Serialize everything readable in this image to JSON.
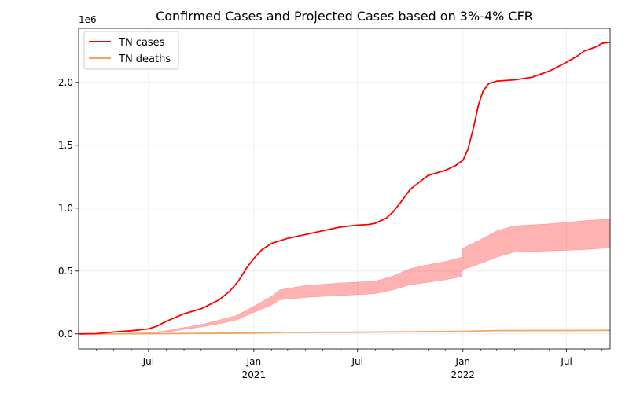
{
  "chart_data": {
    "type": "line",
    "title": "Confirmed Cases and Projected Cases based on 3%-4% CFR",
    "xlabel": "",
    "ylabel": "",
    "y_offset_label": "1e6",
    "y_scale_factor": 1000000,
    "xlim": [
      "2020-03-01",
      "2022-09-15"
    ],
    "ylim": [
      -0.12,
      2.43
    ],
    "yticks": [
      {
        "value": 0.0,
        "label": "0.0"
      },
      {
        "value": 0.5,
        "label": "0.5"
      },
      {
        "value": 1.0,
        "label": "1.0"
      },
      {
        "value": 1.5,
        "label": "1.5"
      },
      {
        "value": 2.0,
        "label": "2.0"
      }
    ],
    "xticks": [
      {
        "date": "2020-07-01",
        "label": "Jul",
        "sublabel": ""
      },
      {
        "date": "2021-01-01",
        "label": "Jan",
        "sublabel": "2021"
      },
      {
        "date": "2021-07-01",
        "label": "Jul",
        "sublabel": ""
      },
      {
        "date": "2022-01-01",
        "label": "Jan",
        "sublabel": "2022"
      },
      {
        "date": "2022-07-01",
        "label": "Jul",
        "sublabel": ""
      }
    ],
    "minor_tick_dates": [
      "2020-04-01",
      "2020-05-01",
      "2020-06-01",
      "2020-08-01",
      "2020-09-01",
      "2020-10-01",
      "2020-11-01",
      "2020-12-01",
      "2021-02-01",
      "2021-03-01",
      "2021-04-01",
      "2021-05-01",
      "2021-06-01",
      "2021-08-01",
      "2021-09-01",
      "2021-10-01",
      "2021-11-01",
      "2021-12-01",
      "2022-02-01",
      "2022-03-01",
      "2022-04-01",
      "2022-05-01",
      "2022-06-01",
      "2022-08-01",
      "2022-09-01"
    ],
    "grid": true,
    "legend_position": "top-left",
    "series": [
      {
        "name": "TN cases",
        "color": "#ff0000",
        "x": [
          "2020-03-01",
          "2020-04-01",
          "2020-05-01",
          "2020-06-01",
          "2020-07-01",
          "2020-07-15",
          "2020-08-01",
          "2020-09-01",
          "2020-10-01",
          "2020-11-01",
          "2020-11-20",
          "2020-12-05",
          "2020-12-20",
          "2021-01-01",
          "2021-01-15",
          "2021-02-01",
          "2021-03-01",
          "2021-04-01",
          "2021-05-01",
          "2021-06-01",
          "2021-07-01",
          "2021-07-20",
          "2021-08-01",
          "2021-08-20",
          "2021-09-01",
          "2021-09-15",
          "2021-10-01",
          "2021-11-01",
          "2021-12-01",
          "2021-12-20",
          "2021-12-25",
          "2022-01-01",
          "2022-01-10",
          "2022-01-20",
          "2022-01-28",
          "2022-02-05",
          "2022-02-15",
          "2022-03-01",
          "2022-04-01",
          "2022-05-01",
          "2022-06-01",
          "2022-07-01",
          "2022-07-20",
          "2022-08-01",
          "2022-08-20",
          "2022-09-01",
          "2022-09-15"
        ],
        "values": [
          0.0,
          0.002,
          0.015,
          0.025,
          0.04,
          0.06,
          0.1,
          0.16,
          0.2,
          0.27,
          0.34,
          0.42,
          0.53,
          0.6,
          0.67,
          0.72,
          0.76,
          0.79,
          0.82,
          0.85,
          0.865,
          0.87,
          0.88,
          0.92,
          0.97,
          1.05,
          1.15,
          1.26,
          1.3,
          1.34,
          1.36,
          1.38,
          1.47,
          1.65,
          1.82,
          1.93,
          1.99,
          2.01,
          2.02,
          2.04,
          2.09,
          2.16,
          2.21,
          2.25,
          2.28,
          2.31,
          2.32
        ]
      },
      {
        "name": "TN deaths",
        "color": "#f4a460",
        "x": [
          "2020-03-01",
          "2020-07-01",
          "2021-01-01",
          "2021-03-01",
          "2021-07-01",
          "2021-12-31",
          "2022-03-01",
          "2022-07-01",
          "2022-09-15"
        ],
        "values": [
          0.0,
          0.001,
          0.007,
          0.012,
          0.013,
          0.02,
          0.026,
          0.027,
          0.028
        ]
      }
    ],
    "band": {
      "color": "#ff0000",
      "opacity": 0.3,
      "x": [
        "2020-03-01",
        "2020-05-01",
        "2020-06-01",
        "2020-07-01",
        "2020-08-01",
        "2020-09-01",
        "2020-10-01",
        "2020-11-01",
        "2020-12-01",
        "2021-01-01",
        "2021-02-01",
        "2021-02-15",
        "2021-04-01",
        "2021-06-01",
        "2021-07-15",
        "2021-08-01",
        "2021-09-01",
        "2021-10-01",
        "2021-11-01",
        "2021-12-01",
        "2021-12-30",
        "2021-12-31",
        "2022-02-01",
        "2022-03-01",
        "2022-04-01",
        "2022-06-01",
        "2022-08-01",
        "2022-09-15"
      ],
      "lower": [
        0.0,
        0.0,
        0.002,
        0.005,
        0.015,
        0.035,
        0.055,
        0.08,
        0.11,
        0.17,
        0.23,
        0.27,
        0.29,
        0.305,
        0.315,
        0.32,
        0.35,
        0.39,
        0.41,
        0.43,
        0.455,
        0.51,
        0.56,
        0.61,
        0.65,
        0.66,
        0.67,
        0.685
      ],
      "upper": [
        0.0,
        0.0,
        0.005,
        0.01,
        0.025,
        0.05,
        0.075,
        0.11,
        0.145,
        0.22,
        0.3,
        0.35,
        0.385,
        0.405,
        0.415,
        0.42,
        0.46,
        0.52,
        0.55,
        0.575,
        0.61,
        0.68,
        0.75,
        0.82,
        0.86,
        0.875,
        0.9,
        0.915
      ]
    }
  }
}
